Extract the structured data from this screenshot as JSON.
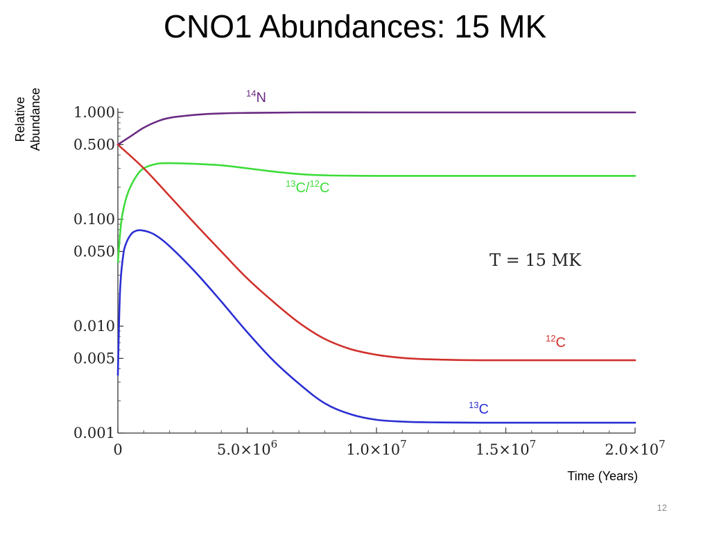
{
  "slide": {
    "title": "CNO1 Abundances: 15 MK",
    "page_number": "12"
  },
  "chart_data": {
    "type": "line",
    "title": "",
    "annotation": "T = 15 MK",
    "xlabel": "Time (Years)",
    "ylabel": [
      "Relative",
      "Abundance"
    ],
    "x_scale": "linear",
    "y_scale": "log",
    "xlim": [
      0,
      20000000
    ],
    "ylim": [
      0.001,
      1.0
    ],
    "grid": false,
    "x_ticks": [
      {
        "value": 0,
        "mantissa": "0",
        "exponent": ""
      },
      {
        "value": 5000000,
        "mantissa": "5.0×10",
        "exponent": "6"
      },
      {
        "value": 10000000,
        "mantissa": "1.0×10",
        "exponent": "7"
      },
      {
        "value": 15000000,
        "mantissa": "1.5×10",
        "exponent": "7"
      },
      {
        "value": 20000000,
        "mantissa": "2.0×10",
        "exponent": "7"
      }
    ],
    "y_ticks": [
      {
        "value": 1.0,
        "label": "1.000"
      },
      {
        "value": 0.5,
        "label": "0.500"
      },
      {
        "value": 0.1,
        "label": "0.100"
      },
      {
        "value": 0.05,
        "label": "0.050"
      },
      {
        "value": 0.01,
        "label": "0.010"
      },
      {
        "value": 0.005,
        "label": "0.005"
      },
      {
        "value": 0.001,
        "label": "0.001"
      }
    ],
    "series": [
      {
        "name": "14N",
        "label_sup": "14",
        "label_base": "N",
        "color": "#6a2a82",
        "x": [
          0,
          500000,
          1000000,
          1500000,
          2000000,
          3000000,
          4000000,
          5000000,
          7000000,
          10000000,
          15000000,
          20000000
        ],
        "y": [
          0.5,
          0.6,
          0.72,
          0.82,
          0.89,
          0.95,
          0.98,
          0.99,
          1.0,
          1.0,
          1.0,
          1.0
        ]
      },
      {
        "name": "13C/12C",
        "label_sup": "13",
        "label_base": "C/",
        "label_sup2": "12",
        "label_base2": "C",
        "color": "#3ddc3a",
        "x": [
          0,
          100000,
          200000,
          400000,
          700000,
          1000000,
          1500000,
          2000000,
          3000000,
          4000000,
          5000000,
          6000000,
          7000000,
          8000000,
          10000000,
          15000000,
          20000000
        ],
        "y": [
          0.04,
          0.08,
          0.12,
          0.18,
          0.25,
          0.3,
          0.33,
          0.335,
          0.33,
          0.32,
          0.3,
          0.28,
          0.265,
          0.258,
          0.255,
          0.255,
          0.255
        ]
      },
      {
        "name": "12C",
        "label_sup": "12",
        "label_base": "C",
        "color": "#d0302a",
        "x": [
          0,
          1000000,
          2000000,
          3000000,
          4000000,
          5000000,
          6000000,
          7000000,
          8000000,
          9000000,
          10000000,
          11000000,
          12000000,
          14000000,
          17000000,
          20000000
        ],
        "y": [
          0.5,
          0.3,
          0.165,
          0.09,
          0.05,
          0.028,
          0.017,
          0.0108,
          0.0076,
          0.0061,
          0.0054,
          0.00505,
          0.0049,
          0.0048,
          0.0048,
          0.0048
        ]
      },
      {
        "name": "13C",
        "label_sup": "13",
        "label_base": "C",
        "color": "#2a2ed2",
        "x": [
          0,
          50000,
          100000,
          200000,
          300000,
          500000,
          700000,
          900000,
          1200000,
          1500000,
          2000000,
          3000000,
          4000000,
          5000000,
          6000000,
          7000000,
          8000000,
          9000000,
          10000000,
          11000000,
          12000000,
          14000000,
          17000000,
          20000000
        ],
        "y": [
          0.0035,
          0.012,
          0.025,
          0.045,
          0.058,
          0.072,
          0.078,
          0.079,
          0.076,
          0.07,
          0.056,
          0.032,
          0.017,
          0.0088,
          0.0048,
          0.0029,
          0.0019,
          0.0015,
          0.00133,
          0.00128,
          0.00126,
          0.00125,
          0.00125,
          0.00125
        ]
      }
    ]
  }
}
